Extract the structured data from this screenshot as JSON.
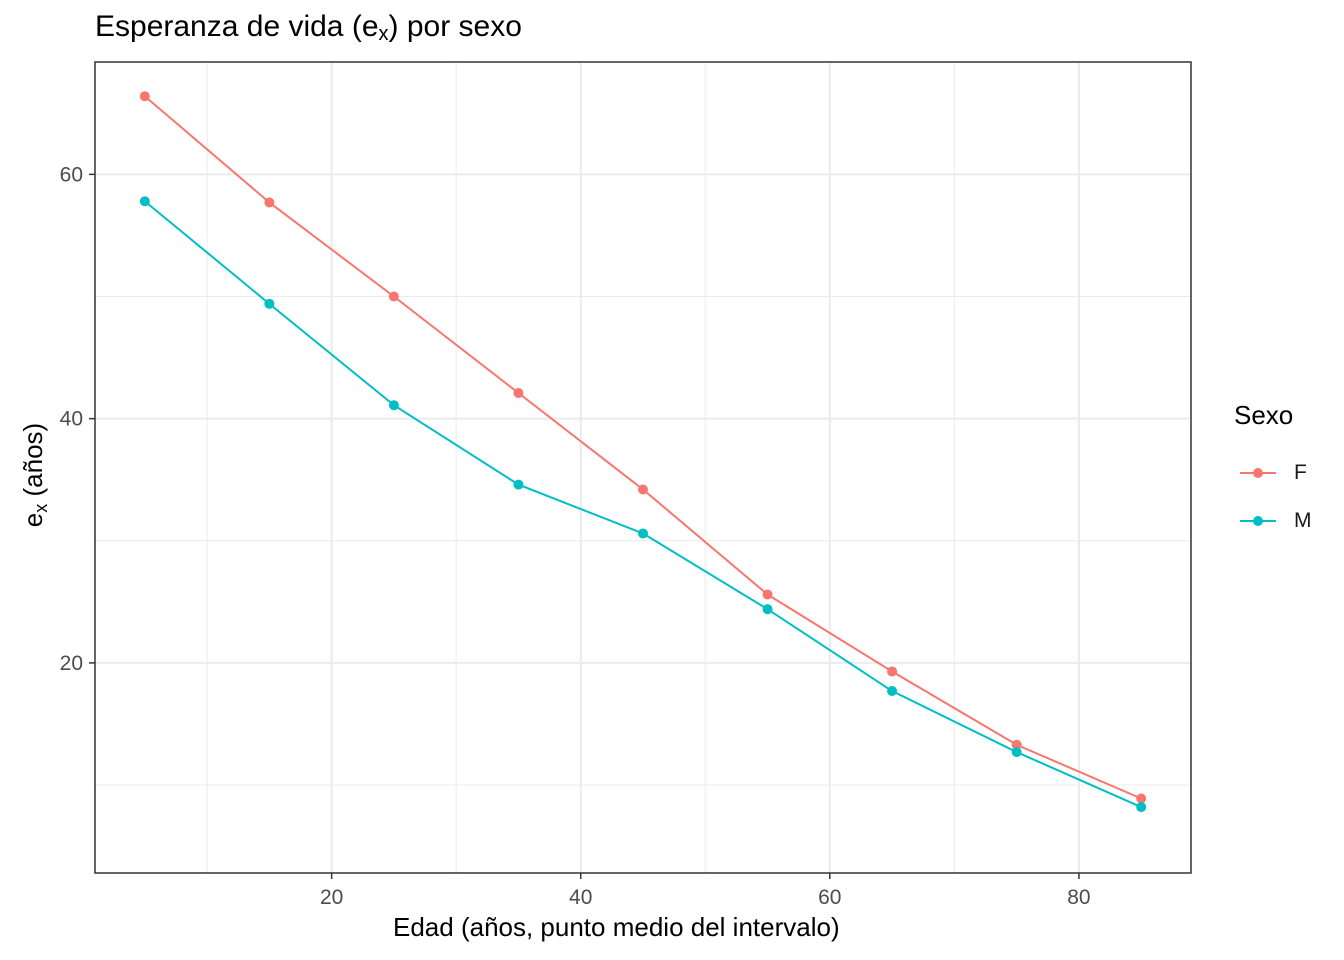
{
  "chart_data": {
    "type": "line",
    "title_main": "Esperanza de vida (e",
    "title_sub": "x",
    "title_end": ") por sexo",
    "xlabel": "Edad (años, punto medio del intervalo)",
    "ylabel_main": "e",
    "ylabel_sub": "x",
    "ylabel_end": " (años)",
    "x": [
      5,
      15,
      25,
      35,
      45,
      55,
      65,
      75,
      85
    ],
    "xlim": [
      1,
      89
    ],
    "ylim": [
      2.8,
      69.2
    ],
    "xticks": [
      20,
      40,
      60,
      80
    ],
    "yticks": [
      20,
      40,
      60
    ],
    "grid": true,
    "legend_title": "Sexo",
    "legend_position": "right",
    "series": [
      {
        "name": "F",
        "color": "#F8766D",
        "values": [
          66.4,
          57.7,
          50.0,
          42.1,
          34.2,
          25.6,
          19.3,
          13.3,
          8.9
        ]
      },
      {
        "name": "M",
        "color": "#00BFC4",
        "values": [
          57.8,
          49.4,
          41.1,
          34.6,
          30.6,
          24.4,
          17.7,
          12.7,
          8.2
        ]
      }
    ]
  }
}
